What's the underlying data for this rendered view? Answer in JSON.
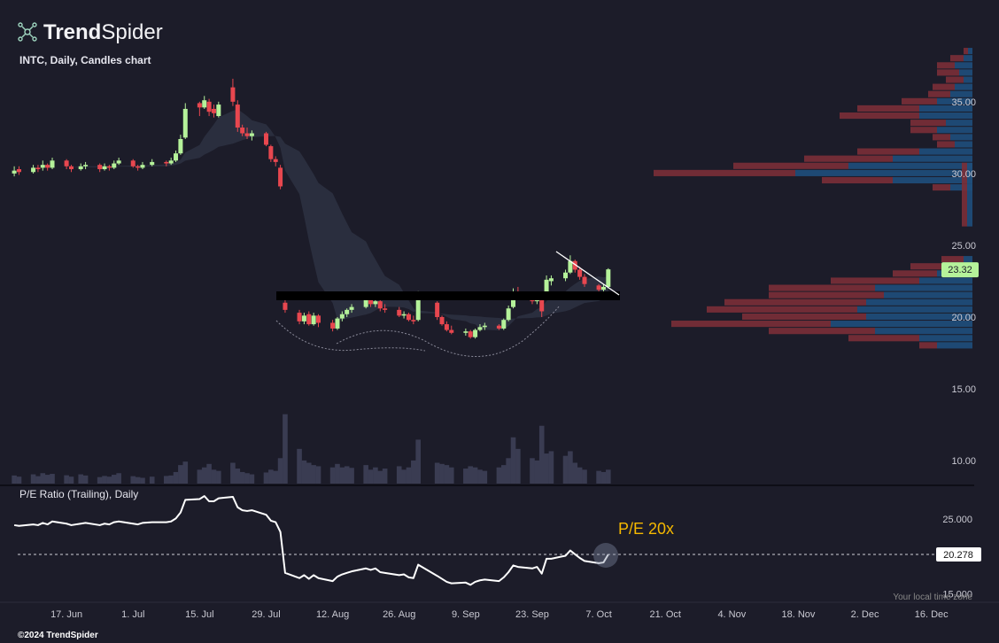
{
  "header": {
    "logo_bold": "Trend",
    "logo_light": "Spider",
    "timezone_note": "Your local time zone",
    "footer": "©2024 TrendSpider"
  },
  "chart_data": [
    {
      "type": "candlestick",
      "title": "INTC, Daily, Candles chart",
      "x": [
        "2024-06-06",
        "2024-06-07",
        "2024-06-10",
        "2024-06-11",
        "2024-06-12",
        "2024-06-13",
        "2024-06-14",
        "2024-06-17",
        "2024-06-18",
        "2024-06-20",
        "2024-06-21",
        "2024-06-24",
        "2024-06-25",
        "2024-06-26",
        "2024-06-27",
        "2024-06-28",
        "2024-07-01",
        "2024-07-02",
        "2024-07-03",
        "2024-07-05",
        "2024-07-08",
        "2024-07-09",
        "2024-07-10",
        "2024-07-11",
        "2024-07-12",
        "2024-07-15",
        "2024-07-16",
        "2024-07-17",
        "2024-07-18",
        "2024-07-19",
        "2024-07-22",
        "2024-07-23",
        "2024-07-24",
        "2024-07-25",
        "2024-07-26",
        "2024-07-29",
        "2024-07-30",
        "2024-07-31",
        "2024-08-01",
        "2024-08-02",
        "2024-08-05",
        "2024-08-06",
        "2024-08-07",
        "2024-08-08",
        "2024-08-09",
        "2024-08-12",
        "2024-08-13",
        "2024-08-14",
        "2024-08-15",
        "2024-08-16",
        "2024-08-19",
        "2024-08-20",
        "2024-08-21",
        "2024-08-22",
        "2024-08-23",
        "2024-08-26",
        "2024-08-27",
        "2024-08-28",
        "2024-08-29",
        "2024-08-30",
        "2024-09-03",
        "2024-09-04",
        "2024-09-05",
        "2024-09-06",
        "2024-09-09",
        "2024-09-10",
        "2024-09-11",
        "2024-09-12",
        "2024-09-13",
        "2024-09-16",
        "2024-09-17",
        "2024-09-18",
        "2024-09-19",
        "2024-09-20",
        "2024-09-23",
        "2024-09-24",
        "2024-09-25",
        "2024-09-26",
        "2024-09-27",
        "2024-09-30",
        "2024-10-01",
        "2024-10-02",
        "2024-10-03",
        "2024-10-04",
        "2024-10-07",
        "2024-10-08",
        "2024-10-09"
      ],
      "open": [
        30.0,
        30.3,
        30.1,
        30.4,
        30.4,
        30.6,
        30.4,
        30.9,
        30.5,
        30.3,
        30.5,
        30.6,
        30.3,
        30.5,
        30.4,
        30.7,
        30.9,
        30.5,
        30.4,
        30.6,
        30.8,
        30.7,
        30.9,
        31.4,
        32.5,
        34.9,
        34.6,
        35.0,
        34.5,
        34.0,
        36.0,
        34.8,
        33.2,
        32.8,
        32.6,
        32.8,
        31.9,
        31.0,
        30.4,
        21.0,
        20.3,
        19.7,
        20.2,
        19.5,
        20.1,
        19.6,
        19.2,
        19.9,
        20.2,
        20.5,
        20.7,
        21.2,
        20.9,
        21.1,
        20.6,
        20.5,
        20.1,
        20.2,
        19.8,
        19.8,
        21.0,
        20.0,
        19.5,
        19.1,
        18.9,
        19.0,
        18.6,
        19.1,
        19.3,
        19.4,
        19.2,
        19.8,
        20.7,
        21.6,
        21.4,
        21.1,
        21.3,
        21.5,
        22.5,
        22.7,
        23.1,
        23.9,
        23.3,
        22.8,
        22.2,
        21.9,
        22.1
      ],
      "high": [
        30.5,
        30.5,
        30.6,
        30.6,
        30.9,
        30.7,
        31.1,
        31.0,
        30.6,
        30.7,
        30.8,
        30.7,
        30.7,
        30.6,
        30.9,
        31.1,
        31.0,
        30.6,
        30.8,
        31.0,
        30.9,
        31.1,
        31.6,
        32.7,
        34.9,
        35.0,
        35.4,
        35.2,
        34.8,
        35.0,
        36.6,
        35.1,
        33.4,
        33.2,
        33.0,
        32.9,
        32.0,
        31.2,
        30.6,
        21.5,
        20.5,
        20.3,
        20.4,
        20.3,
        20.2,
        19.8,
        20.0,
        20.4,
        20.6,
        20.9,
        21.4,
        21.3,
        21.3,
        21.2,
        20.9,
        20.7,
        20.4,
        20.3,
        20.1,
        21.8,
        21.1,
        20.1,
        19.7,
        19.4,
        19.2,
        19.1,
        19.2,
        19.5,
        19.6,
        19.5,
        19.9,
        20.8,
        22.0,
        22.1,
        21.7,
        21.6,
        21.5,
        22.9,
        22.9,
        23.3,
        24.3,
        24.0,
        23.5,
        23.0,
        22.3,
        22.3,
        23.4
      ],
      "low": [
        29.8,
        29.9,
        30.0,
        30.1,
        30.2,
        30.2,
        30.3,
        30.3,
        30.1,
        30.2,
        30.3,
        30.1,
        30.2,
        30.2,
        30.3,
        30.6,
        30.4,
        30.2,
        30.3,
        30.5,
        30.5,
        30.6,
        30.8,
        31.3,
        32.4,
        34.0,
        34.5,
        34.0,
        33.9,
        33.9,
        34.7,
        32.9,
        32.6,
        32.4,
        32.3,
        31.9,
        30.8,
        30.5,
        28.9,
        20.3,
        19.5,
        19.5,
        19.4,
        19.4,
        19.3,
        19.0,
        19.1,
        19.7,
        20.0,
        20.3,
        20.6,
        20.7,
        20.7,
        20.4,
        20.3,
        20.0,
        19.9,
        19.7,
        19.5,
        19.7,
        19.8,
        19.4,
        19.0,
        18.8,
        18.7,
        18.5,
        18.5,
        19.0,
        19.1,
        19.1,
        19.1,
        19.7,
        20.6,
        21.2,
        20.9,
        20.9,
        20.0,
        21.4,
        22.2,
        22.5,
        23.0,
        23.1,
        22.6,
        22.1,
        21.5,
        21.7,
        22.0
      ],
      "close": [
        30.2,
        30.1,
        30.4,
        30.3,
        30.6,
        30.4,
        30.9,
        30.5,
        30.3,
        30.5,
        30.6,
        30.3,
        30.5,
        30.4,
        30.7,
        30.9,
        30.5,
        30.4,
        30.6,
        30.8,
        30.7,
        30.9,
        31.4,
        32.4,
        34.5,
        34.6,
        35.1,
        34.3,
        34.2,
        34.8,
        35.0,
        33.2,
        32.8,
        32.6,
        32.8,
        32.0,
        31.0,
        30.8,
        29.1,
        20.5,
        19.7,
        20.1,
        19.5,
        20.1,
        19.6,
        19.2,
        19.9,
        20.2,
        20.5,
        20.7,
        21.2,
        20.9,
        21.1,
        20.6,
        20.5,
        20.1,
        20.2,
        19.8,
        19.7,
        21.7,
        20.0,
        19.5,
        19.1,
        18.9,
        19.0,
        18.6,
        19.1,
        19.3,
        19.4,
        19.2,
        19.8,
        20.6,
        21.6,
        21.4,
        21.1,
        21.4,
        20.4,
        22.6,
        22.7,
        23.1,
        23.9,
        23.3,
        22.8,
        22.3,
        21.9,
        22.1,
        23.32
      ],
      "volume": [
        35,
        30,
        40,
        32,
        45,
        38,
        42,
        36,
        30,
        40,
        35,
        28,
        33,
        30,
        38,
        45,
        32,
        28,
        25,
        30,
        33,
        35,
        50,
        80,
        95,
        60,
        70,
        85,
        60,
        55,
        90,
        65,
        50,
        45,
        40,
        48,
        60,
        55,
        110,
        300,
        150,
        100,
        90,
        80,
        75,
        70,
        85,
        70,
        75,
        68,
        80,
        60,
        70,
        55,
        65,
        75,
        60,
        70,
        100,
        190,
        90,
        85,
        80,
        70,
        65,
        75,
        70,
        60,
        55,
        70,
        80,
        110,
        200,
        150,
        110,
        100,
        250,
        130,
        140,
        120,
        140,
        90,
        70,
        60,
        55,
        50,
        60
      ],
      "volume_ylim": [
        0,
        1900
      ],
      "volume_profile": {
        "levels": [
          38.5,
          38.0,
          37.5,
          37.0,
          36.5,
          36.0,
          35.5,
          35.0,
          34.5,
          34.0,
          33.5,
          33.0,
          32.5,
          32.0,
          31.5,
          31.0,
          30.5,
          30.0,
          29.5,
          29.0,
          28.5,
          24.0,
          23.5,
          23.0,
          22.5,
          22.0,
          21.5,
          21.0,
          20.5,
          20.0,
          19.5,
          19.0,
          18.5,
          18.0
        ],
        "up": [
          5,
          10,
          20,
          15,
          10,
          20,
          25,
          40,
          60,
          60,
          30,
          40,
          25,
          20,
          60,
          90,
          140,
          200,
          90,
          25,
          6,
          10,
          30,
          40,
          60,
          110,
          100,
          120,
          130,
          120,
          160,
          110,
          60,
          40
        ],
        "down": [
          5,
          15,
          20,
          25,
          20,
          25,
          25,
          40,
          70,
          90,
          40,
          30,
          20,
          20,
          70,
          100,
          130,
          160,
          80,
          20,
          6,
          25,
          40,
          50,
          100,
          120,
          130,
          160,
          170,
          140,
          180,
          120,
          80,
          20
        ]
      },
      "profile_xlim": [
        0,
        450
      ],
      "xlim": [
        "2024-06-03",
        "2024-12-25"
      ],
      "ylim": [
        8.4,
        39.0
      ],
      "yticks": [
        {
          "value": 35,
          "label": "35.00"
        },
        {
          "value": 30,
          "label": "30.00"
        },
        {
          "value": 25,
          "label": "25.00"
        },
        {
          "value": 20,
          "label": "20.00"
        },
        {
          "value": 15,
          "label": "15.00"
        },
        {
          "value": 10,
          "label": "10.00"
        }
      ],
      "grid": false,
      "up_color": "#b5f29a",
      "down_color": "#e8474f",
      "volume_color": "#3a3c52",
      "profile_up_color": "#1f4f7c",
      "profile_down_color": "#7b2f37"
    },
    {
      "type": "line",
      "title": "P/E Ratio (Trailing), Daily",
      "annotation": "P/E 20x",
      "x": [
        "2024-06-06",
        "2024-06-07",
        "2024-06-10",
        "2024-06-11",
        "2024-06-12",
        "2024-06-13",
        "2024-06-14",
        "2024-06-17",
        "2024-06-18",
        "2024-06-20",
        "2024-06-21",
        "2024-06-24",
        "2024-06-25",
        "2024-06-26",
        "2024-06-27",
        "2024-06-28",
        "2024-07-01",
        "2024-07-02",
        "2024-07-03",
        "2024-07-05",
        "2024-07-08",
        "2024-07-09",
        "2024-07-10",
        "2024-07-11",
        "2024-07-12",
        "2024-07-15",
        "2024-07-16",
        "2024-07-17",
        "2024-07-18",
        "2024-07-19",
        "2024-07-22",
        "2024-07-23",
        "2024-07-24",
        "2024-07-25",
        "2024-07-26",
        "2024-07-29",
        "2024-07-30",
        "2024-07-31",
        "2024-08-01",
        "2024-08-02",
        "2024-08-05",
        "2024-08-06",
        "2024-08-07",
        "2024-08-08",
        "2024-08-09",
        "2024-08-12",
        "2024-08-13",
        "2024-08-14",
        "2024-08-15",
        "2024-08-16",
        "2024-08-19",
        "2024-08-20",
        "2024-08-21",
        "2024-08-22",
        "2024-08-23",
        "2024-08-26",
        "2024-08-27",
        "2024-08-28",
        "2024-08-29",
        "2024-08-30",
        "2024-09-03",
        "2024-09-04",
        "2024-09-05",
        "2024-09-06",
        "2024-09-09",
        "2024-09-10",
        "2024-09-11",
        "2024-09-12",
        "2024-09-13",
        "2024-09-16",
        "2024-09-17",
        "2024-09-18",
        "2024-09-19",
        "2024-09-20",
        "2024-09-23",
        "2024-09-24",
        "2024-09-25",
        "2024-09-26",
        "2024-09-27",
        "2024-09-30",
        "2024-10-01",
        "2024-10-02",
        "2024-10-03",
        "2024-10-04",
        "2024-10-07",
        "2024-10-08",
        "2024-10-09"
      ],
      "values": [
        24.2,
        24.1,
        24.3,
        24.2,
        24.5,
        24.3,
        24.7,
        24.4,
        24.2,
        24.4,
        24.5,
        24.2,
        24.4,
        24.3,
        24.6,
        24.7,
        24.4,
        24.3,
        24.5,
        24.6,
        24.6,
        24.7,
        25.1,
        25.9,
        27.6,
        27.7,
        28.1,
        27.4,
        27.4,
        27.8,
        28.0,
        26.6,
        26.2,
        26.1,
        26.2,
        25.6,
        24.8,
        24.6,
        23.3,
        17.8,
        17.1,
        17.5,
        17.0,
        17.5,
        17.1,
        16.7,
        17.3,
        17.6,
        17.8,
        18.0,
        18.4,
        18.2,
        18.4,
        17.9,
        17.8,
        17.5,
        17.6,
        17.2,
        17.1,
        18.9,
        17.4,
        17.0,
        16.6,
        16.4,
        16.5,
        16.2,
        16.6,
        16.8,
        16.9,
        16.7,
        17.2,
        17.9,
        18.8,
        18.6,
        18.4,
        18.6,
        17.7,
        19.7,
        19.7,
        20.1,
        20.8,
        20.3,
        19.8,
        19.4,
        19.1,
        19.2,
        20.278
      ],
      "color": "#ffffff",
      "xlim": [
        "2024-06-03",
        "2024-12-25"
      ],
      "ylim": [
        14.1,
        29.3
      ],
      "yticks": [
        {
          "value": 25,
          "label": "25.000"
        },
        {
          "value": 15,
          "label": "15.000"
        }
      ],
      "xticks": [
        {
          "value": "2024-06-17",
          "label": "17. Jun"
        },
        {
          "value": "2024-07-01",
          "label": "1. Jul"
        },
        {
          "value": "2024-07-15",
          "label": "15. Jul"
        },
        {
          "value": "2024-07-29",
          "label": "29. Jul"
        },
        {
          "value": "2024-08-12",
          "label": "12. Aug"
        },
        {
          "value": "2024-08-26",
          "label": "26. Aug"
        },
        {
          "value": "2024-09-09",
          "label": "9. Sep"
        },
        {
          "value": "2024-09-23",
          "label": "23. Sep"
        },
        {
          "value": "2024-10-07",
          "label": "7. Oct"
        },
        {
          "value": "2024-10-21",
          "label": "21. Oct"
        },
        {
          "value": "2024-11-04",
          "label": "4. Nov"
        },
        {
          "value": "2024-11-18",
          "label": "18. Nov"
        },
        {
          "value": "2024-12-02",
          "label": "2. Dec"
        },
        {
          "value": "2024-12-16",
          "label": "16. Dec"
        }
      ]
    }
  ]
}
